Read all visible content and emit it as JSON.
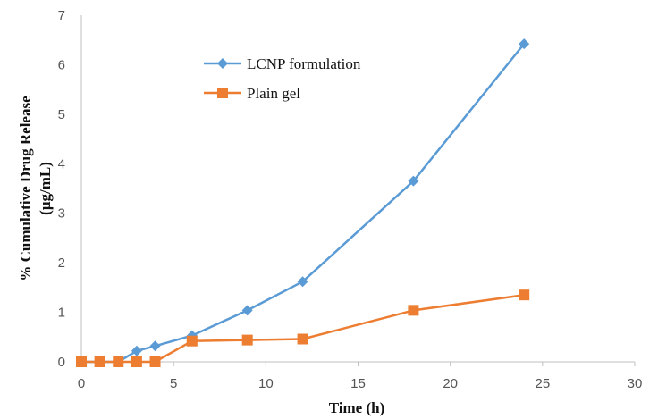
{
  "chart_data": {
    "type": "line",
    "title": "",
    "xlabel": "Time (h)",
    "ylabel_lines": [
      "% Cumulative Drug Release",
      "(µg/mL)"
    ],
    "xlim": [
      0,
      30
    ],
    "ylim": [
      0,
      7
    ],
    "x_ticks": [
      "0",
      "5",
      "10",
      "15",
      "20",
      "25",
      "30"
    ],
    "y_ticks": [
      "0",
      "1",
      "2",
      "3",
      "4",
      "5",
      "6",
      "7"
    ],
    "grid": false,
    "legend_position": "upper-middle",
    "series": [
      {
        "name": "LCNP formulation",
        "color": "#5b9bd5",
        "marker": "diamond",
        "x": [
          0,
          1,
          2,
          3,
          4,
          6,
          9,
          12,
          18,
          24
        ],
        "y": [
          0,
          0,
          0,
          0.22,
          0.32,
          0.53,
          1.04,
          1.62,
          3.65,
          6.42
        ]
      },
      {
        "name": "Plain gel",
        "color": "#ed7d31",
        "marker": "square",
        "x": [
          0,
          1,
          2,
          3,
          4,
          6,
          9,
          12,
          18,
          24
        ],
        "y": [
          0,
          0,
          0,
          0,
          0,
          0.42,
          0.44,
          0.46,
          1.04,
          1.35
        ]
      }
    ]
  }
}
